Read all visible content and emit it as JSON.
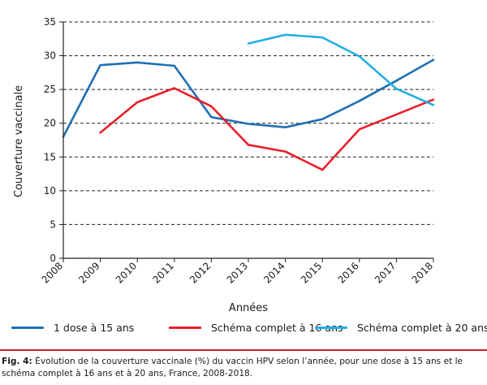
{
  "chart_data": {
    "type": "line",
    "x": [
      2008,
      2009,
      2010,
      2011,
      2012,
      2013,
      2014,
      2015,
      2016,
      2017,
      2018
    ],
    "xlabel": "Années",
    "ylabel": "Couverture vaccinale",
    "ylim": [
      0,
      35
    ],
    "yticks": [
      0,
      5,
      10,
      15,
      20,
      25,
      30,
      35
    ],
    "grid": "horizontal dashed",
    "legend_position": "bottom",
    "series": [
      {
        "name": "1 dose à 15 ans",
        "color": "#1f6fb4",
        "values": [
          18.0,
          28.6,
          29.0,
          28.5,
          20.9,
          19.9,
          19.4,
          20.6,
          23.3,
          26.3,
          29.4
        ]
      },
      {
        "name": "Schéma complet à 16 ans",
        "color": "#e8202a",
        "values": [
          null,
          18.6,
          23.1,
          25.2,
          22.5,
          16.8,
          15.8,
          13.1,
          19.1,
          21.3,
          23.5
        ]
      },
      {
        "name": "Schéma complet à 20 ans",
        "color": "#22aee6",
        "values": [
          null,
          null,
          null,
          null,
          null,
          31.8,
          33.1,
          32.7,
          29.9,
          25.1,
          22.7
        ]
      }
    ]
  },
  "caption": {
    "label": "Fig. 4:",
    "text": " Évolution de la couverture vaccinale (%) du vaccin HPV selon l’année, pour une dose à 15 ans et le schéma complet à 16 ans et à 20 ans, France, 2008-2018."
  }
}
